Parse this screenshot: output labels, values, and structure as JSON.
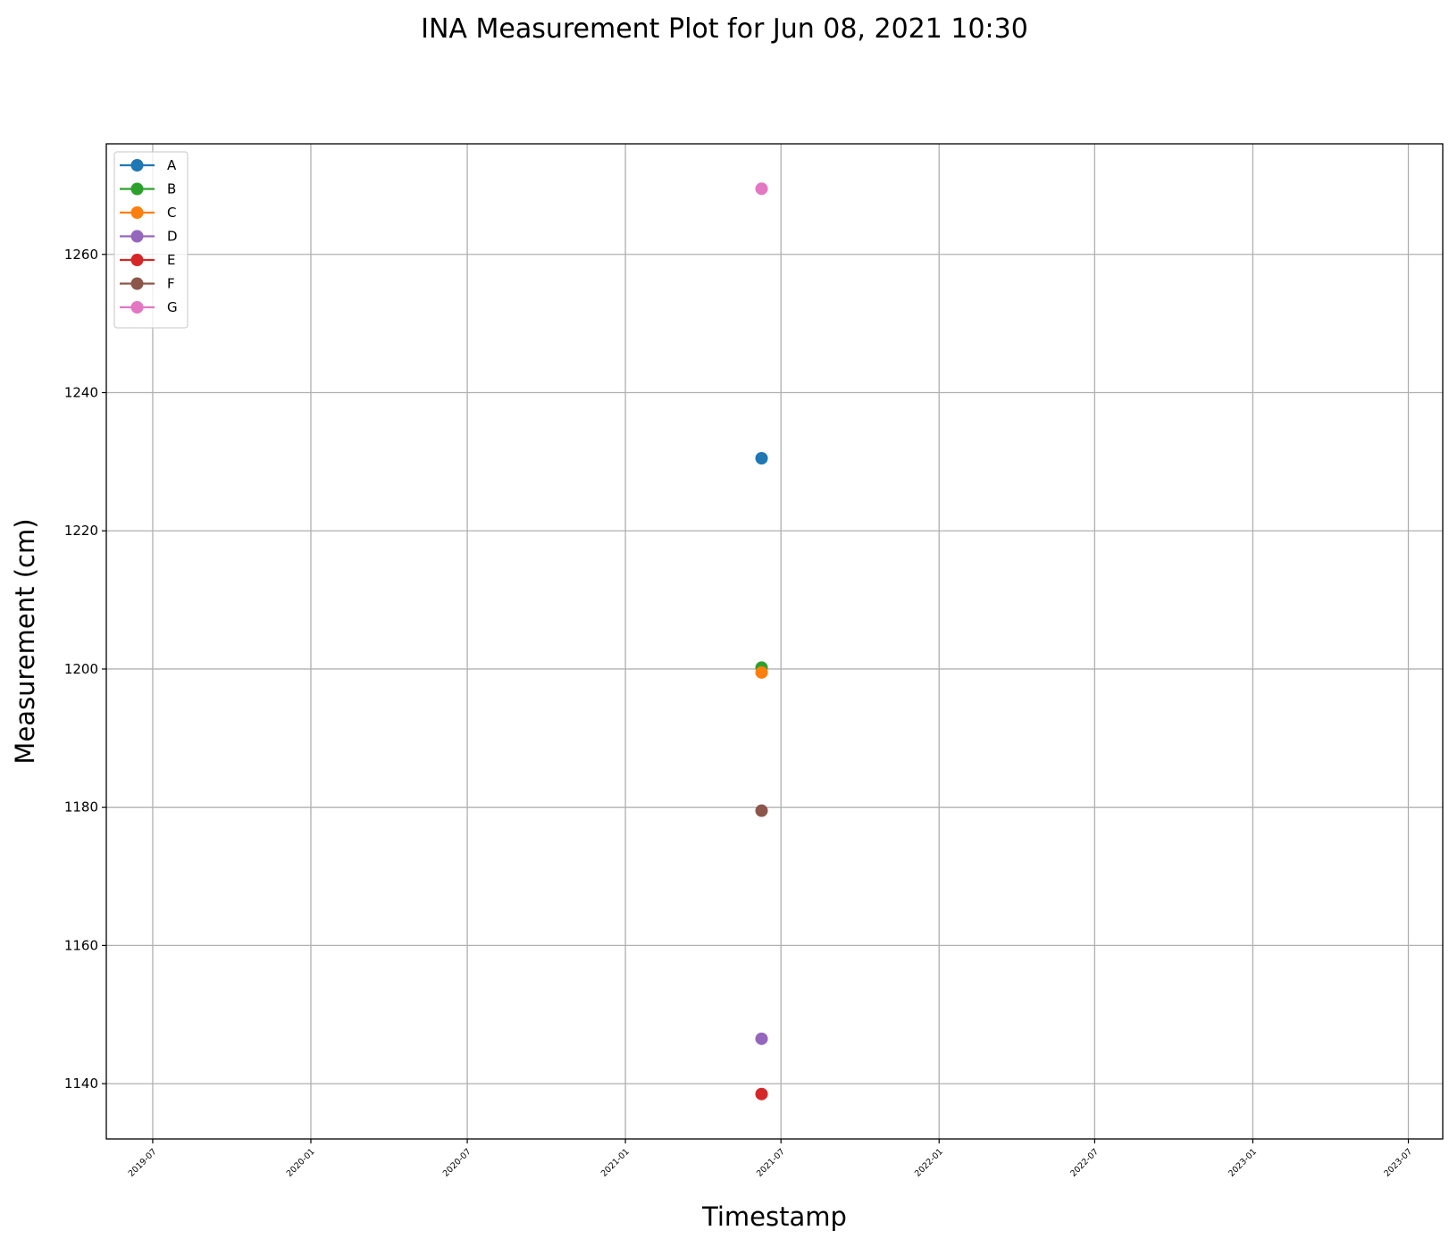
{
  "chart_data": {
    "type": "line",
    "title": "INA Measurement Plot for Jun 08, 2021 10:30",
    "xlabel": "Timestamp",
    "ylabel": "Measurement (cm)",
    "x_ticks": [
      "2019-07",
      "2020-01",
      "2020-07",
      "2021-01",
      "2021-07",
      "2022-01",
      "2022-07",
      "2023-01",
      "2023-07"
    ],
    "y_ticks": [
      1140,
      1160,
      1180,
      1200,
      1220,
      1240,
      1260
    ],
    "xlim": [
      "2019-05-08",
      "2023-08-10"
    ],
    "ylim": [
      1132,
      1276
    ],
    "grid": true,
    "legend_position": "upper left",
    "series": [
      {
        "name": "A",
        "color": "#1f77b4",
        "points": [
          {
            "x": "2021-06-08 10:30",
            "y": 1230.5
          }
        ]
      },
      {
        "name": "B",
        "color": "#2ca02c",
        "points": [
          {
            "x": "2021-06-08 10:30",
            "y": 1200.2
          }
        ]
      },
      {
        "name": "C",
        "color": "#ff7f0e",
        "points": [
          {
            "x": "2021-06-08 10:30",
            "y": 1199.5
          }
        ]
      },
      {
        "name": "D",
        "color": "#9467bd",
        "points": [
          {
            "x": "2021-06-08 10:30",
            "y": 1146.5
          }
        ]
      },
      {
        "name": "E",
        "color": "#d62728",
        "points": [
          {
            "x": "2021-06-08 10:30",
            "y": 1138.5
          }
        ]
      },
      {
        "name": "F",
        "color": "#8c564b",
        "points": [
          {
            "x": "2021-06-08 10:30",
            "y": 1179.5
          }
        ]
      },
      {
        "name": "G",
        "color": "#e377c2",
        "points": [
          {
            "x": "2021-06-08 10:30",
            "y": 1269.5
          }
        ]
      }
    ]
  }
}
